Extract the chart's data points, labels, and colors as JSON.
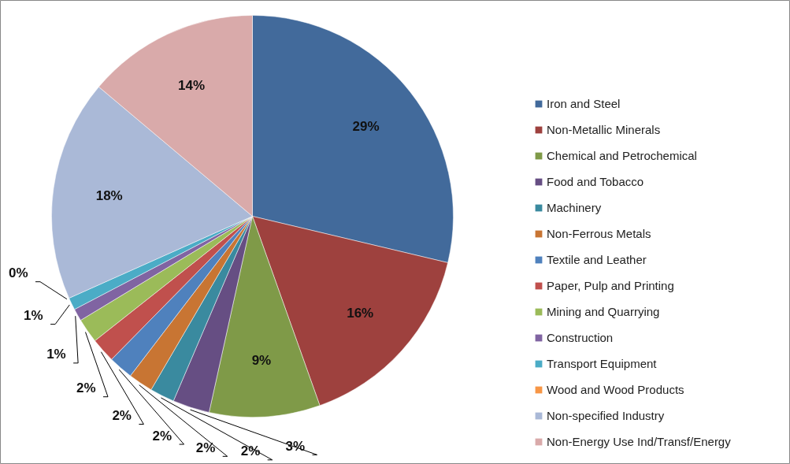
{
  "chart_data": {
    "type": "pie",
    "categories": [
      "Iron and Steel",
      "Non-Metallic Minerals",
      "Chemical and Petrochemical",
      "Food and Tobacco",
      "Machinery",
      "Non-Ferrous Metals",
      "Textile and Leather",
      "Paper, Pulp and Printing",
      "Mining and Quarrying",
      "Construction",
      "Transport Equipment",
      "Wood and Wood Products",
      "Non-specified Industry",
      "Non-Energy Use Ind/Transf/Energy"
    ],
    "values": [
      29,
      16,
      9,
      3,
      2,
      2,
      2,
      2,
      2,
      1,
      1,
      0,
      18,
      14
    ],
    "colors": [
      "#426a9b",
      "#9e413e",
      "#7f9a48",
      "#664e83",
      "#3a8a9f",
      "#c87533",
      "#4f81bd",
      "#c0504d",
      "#9bbb59",
      "#8064a2",
      "#4bacc6",
      "#f79646",
      "#aab9d7",
      "#d9aaaa"
    ],
    "value_labels": [
      "29%",
      "16%",
      "9%",
      "3%",
      "2%",
      "2%",
      "2%",
      "2%",
      "2%",
      "1%",
      "1%",
      "0%",
      "18%",
      "14%"
    ],
    "legend": "right"
  }
}
